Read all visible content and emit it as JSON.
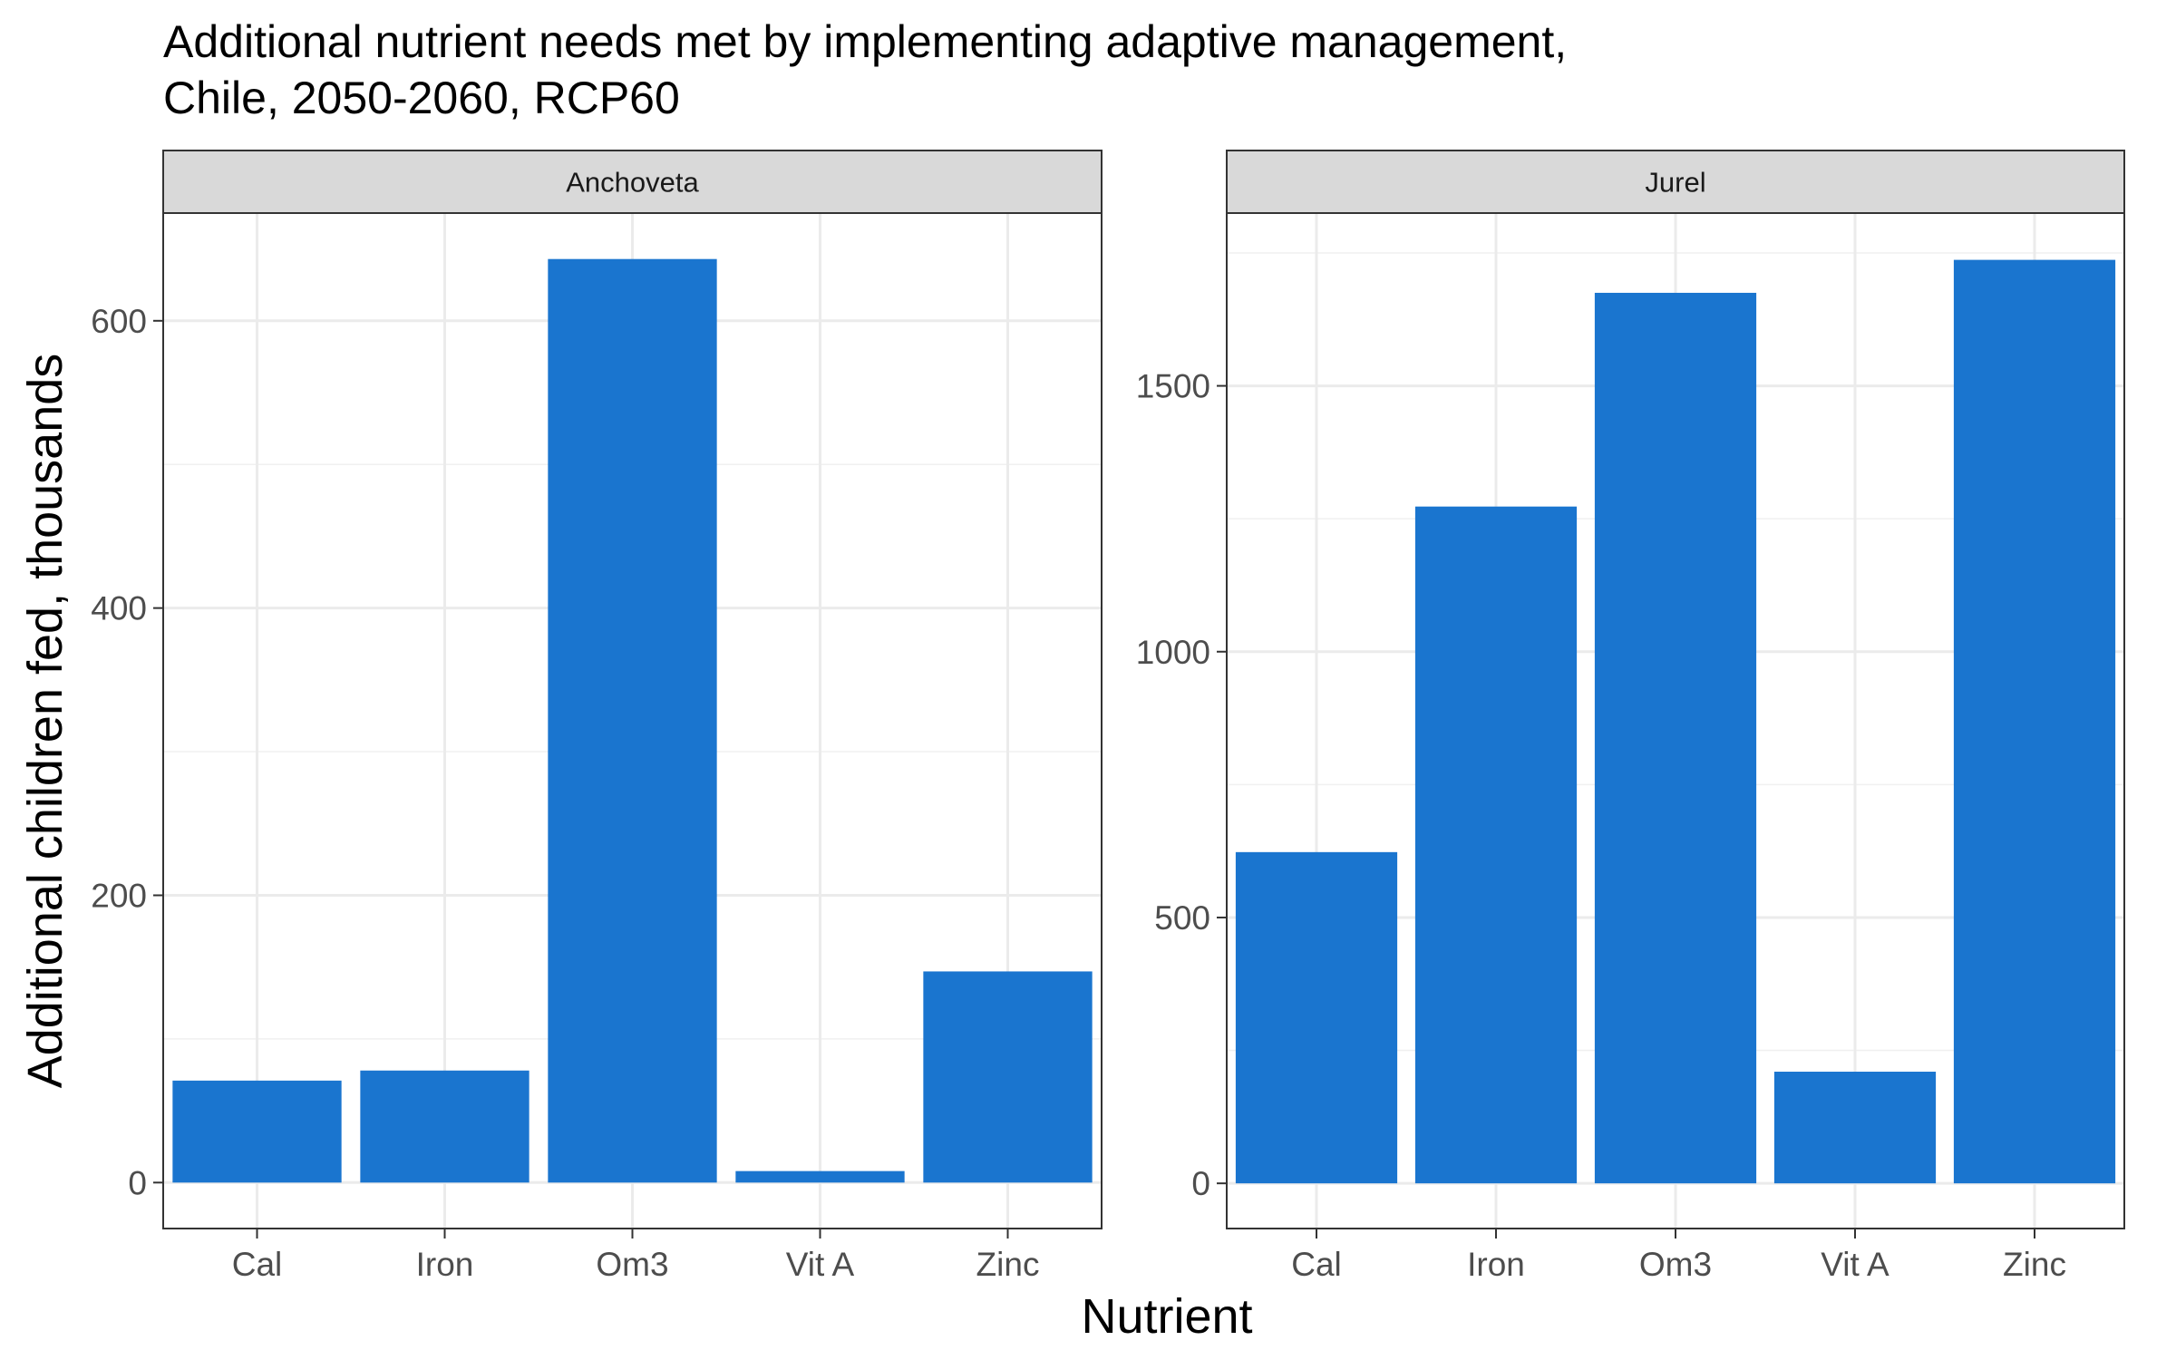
{
  "chart_data": {
    "type": "bar",
    "title": "Additional nutrient needs met by implementing adaptive management,",
    "subtitle": "Chile, 2050-2060, RCP60",
    "xlabel": "Nutrient",
    "ylabel": "Additional children fed, thousands",
    "bar_color": "#1A75CF",
    "grid": true,
    "legend": "none",
    "categories": [
      "Cal",
      "Iron",
      "Om3",
      "Vit A",
      "Zinc"
    ],
    "facets": [
      {
        "name": "Anchoveta",
        "values": [
          71,
          78,
          643,
          8,
          147
        ],
        "ylim": [
          -32,
          675
        ],
        "yticks": [
          0,
          200,
          400,
          600
        ]
      },
      {
        "name": "Jurel",
        "values": [
          623,
          1273,
          1675,
          210,
          1737
        ],
        "ylim": [
          -85,
          1825
        ],
        "yticks": [
          0,
          500,
          1000,
          1500
        ]
      }
    ]
  }
}
